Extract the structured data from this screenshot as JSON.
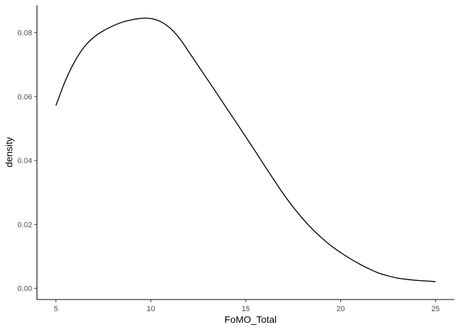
{
  "chart_data": {
    "type": "line",
    "title": "",
    "xlabel": "FoMO_Total",
    "ylabel": "density",
    "xlim": [
      4,
      26
    ],
    "ylim": [
      -0.0035,
      0.0885
    ],
    "x_ticks": [
      5,
      10,
      15,
      20,
      25
    ],
    "x_tick_labels": [
      "5",
      "10",
      "15",
      "20",
      "25"
    ],
    "y_ticks": [
      0.0,
      0.02,
      0.04,
      0.06,
      0.08
    ],
    "y_tick_labels": [
      "0.00",
      "0.02",
      "0.04",
      "0.06",
      "0.08"
    ],
    "grid": false,
    "legend": "none",
    "line_color": "#000000",
    "series": [
      {
        "x": [
          5,
          5.5,
          6,
          6.5,
          7,
          7.5,
          8,
          8.5,
          9,
          9.5,
          10,
          10.5,
          11,
          11.5,
          12,
          12.5,
          13,
          13.5,
          14,
          14.5,
          15,
          15.5,
          16,
          16.5,
          17,
          17.5,
          18,
          18.5,
          19,
          19.5,
          20,
          20.5,
          21,
          21.5,
          22,
          22.5,
          23,
          23.5,
          24,
          24.5,
          25
        ],
        "y": [
          0.0572,
          0.065,
          0.0711,
          0.0756,
          0.0786,
          0.0806,
          0.0821,
          0.0833,
          0.084,
          0.0845,
          0.0844,
          0.0835,
          0.0815,
          0.0783,
          0.074,
          0.0696,
          0.0652,
          0.0608,
          0.0563,
          0.0519,
          0.0474,
          0.0429,
          0.0383,
          0.0338,
          0.0294,
          0.0254,
          0.0218,
          0.0186,
          0.0158,
          0.0133,
          0.0112,
          0.0093,
          0.0076,
          0.0061,
          0.0048,
          0.0039,
          0.0032,
          0.0028,
          0.0025,
          0.0023,
          0.0021
        ]
      }
    ]
  }
}
